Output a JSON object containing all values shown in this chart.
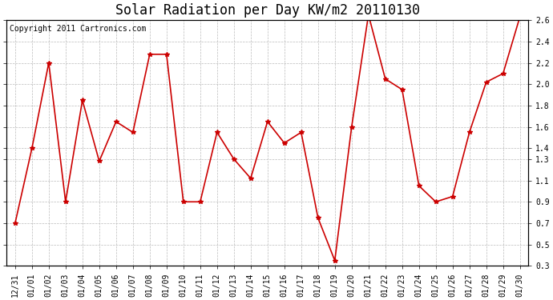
{
  "title": "Solar Radiation per Day KW/m2 20110130",
  "copyright": "Copyright 2011 Cartronics.com",
  "dates": [
    "12/31",
    "01/01",
    "01/02",
    "01/03",
    "01/04",
    "01/05",
    "01/06",
    "01/07",
    "01/08",
    "01/09",
    "01/10",
    "01/11",
    "01/12",
    "01/13",
    "01/14",
    "01/15",
    "01/16",
    "01/17",
    "01/18",
    "01/19",
    "01/20",
    "01/21",
    "01/22",
    "01/23",
    "01/24",
    "01/25",
    "01/26",
    "01/27",
    "01/28",
    "01/29",
    "01/30"
  ],
  "values": [
    0.7,
    1.4,
    2.2,
    0.9,
    1.85,
    1.28,
    1.65,
    1.55,
    2.28,
    2.28,
    0.9,
    0.9,
    1.55,
    1.3,
    1.12,
    1.65,
    1.45,
    1.55,
    0.75,
    0.35,
    1.6,
    2.65,
    2.05,
    1.95,
    1.05,
    0.9,
    0.95,
    1.55,
    2.02,
    2.1,
    2.63
  ],
  "ylim": [
    0.3,
    2.6
  ],
  "yticks": [
    0.3,
    0.5,
    0.7,
    0.9,
    1.1,
    1.3,
    1.4,
    1.6,
    1.8,
    2.0,
    2.2,
    2.4,
    2.6
  ],
  "ytick_labels": [
    "0.3",
    "0.5",
    "0.7",
    "0.9",
    "1.1",
    "1.3",
    "1.4",
    "1.6",
    "1.8",
    "2.0",
    "2.2",
    "2.4",
    "2.6"
  ],
  "line_color": "#cc0000",
  "marker": "*",
  "marker_size": 4,
  "bg_color": "#ffffff",
  "grid_color": "#bbbbbb",
  "title_fontsize": 12,
  "tick_fontsize": 7,
  "copyright_fontsize": 7
}
